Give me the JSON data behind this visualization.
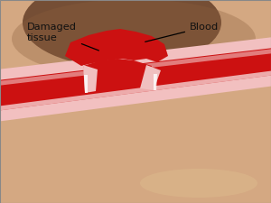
{
  "background_skin_light": "#d4a882",
  "artery_red": "#cc1111",
  "artery_wall_pink": "#f2c0c0",
  "blood_pool_red": "#cc1111",
  "damaged_dark": "#5a3520",
  "label_color": "#111111",
  "label_damaged": "Damaged\ntissue",
  "label_blood": "Blood",
  "figsize": [
    3.0,
    2.25
  ],
  "dpi": 100
}
